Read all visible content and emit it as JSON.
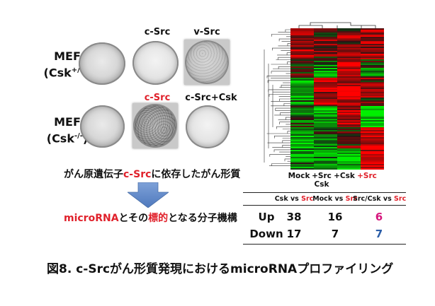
{
  "culture": {
    "col_c_src_top": "c-Src",
    "col_v_src": "v-Src",
    "col_c_src_bottom": "c-Src",
    "col_c_src_csk": "c-Src+Csk",
    "row1": {
      "main": "MEF",
      "sub": "(Csk",
      "sup": "+/+",
      "close": ")"
    },
    "row2": {
      "main": "MEF",
      "sub": "(Csk",
      "sup": "-/-",
      "close": ")"
    }
  },
  "text": {
    "line1_prefix": "がん原遺伝子",
    "line1_red": "c-Src",
    "line1_suffix": "に依存したがん形質",
    "line2_red1": "microRNA",
    "line2_mid": "とその",
    "line2_red2": "標的",
    "line2_suffix": "となる分子機構"
  },
  "heatmap": {
    "labels": {
      "mock": "Mock",
      "src_csk_top": "+Src",
      "src_csk_bottom": "Csk",
      "csk": "+Csk",
      "src": "+Src"
    }
  },
  "table": {
    "headers": [
      {
        "a": "Csk vs ",
        "b": "Src"
      },
      {
        "a": "Mock vs ",
        "b": "Src"
      },
      {
        "a": "Src/Csk vs ",
        "b": "Src"
      }
    ],
    "rows": [
      {
        "label": "Up",
        "values": [
          "38",
          "16",
          "6"
        ]
      },
      {
        "label": "Down",
        "values": [
          "17",
          "7",
          "7"
        ]
      }
    ]
  },
  "caption": "図8. c-Srcがん形質発現におけるmicroRNAプロファイリング",
  "colors": {
    "red": "#e0212b",
    "magenta": "#d6177d",
    "blue": "#2c5ea8",
    "arrow": "#5b86c9"
  }
}
